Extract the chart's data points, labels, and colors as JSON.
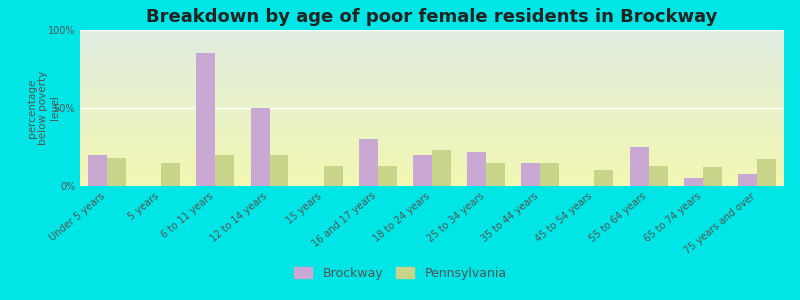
{
  "title": "Breakdown by age of poor female residents in Brockway",
  "ylabel": "percentage\nbelow poverty\nlevel",
  "categories": [
    "Under 5 years",
    "5 years",
    "6 to 11 years",
    "12 to 14 years",
    "15 years",
    "16 and 17 years",
    "18 to 24 years",
    "25 to 34 years",
    "35 to 44 years",
    "45 to 54 years",
    "55 to 64 years",
    "65 to 74 years",
    "75 years and over"
  ],
  "brockway": [
    20,
    0,
    85,
    50,
    0,
    30,
    20,
    22,
    15,
    0,
    25,
    5,
    8
  ],
  "pennsylvania": [
    18,
    15,
    20,
    20,
    13,
    13,
    23,
    15,
    15,
    10,
    13,
    12,
    17
  ],
  "brockway_color": "#c9a8d4",
  "pennsylvania_color": "#c8d48a",
  "outer_bg": "#00e5e5",
  "ylim": [
    0,
    100
  ],
  "yticks": [
    0,
    50,
    100
  ],
  "ytick_labels": [
    "0%",
    "50%",
    "100%"
  ],
  "title_fontsize": 13,
  "axis_label_fontsize": 7.5,
  "tick_label_fontsize": 7,
  "bar_width": 0.35,
  "legend_brockway": "Brockway",
  "legend_pennsylvania": "Pennsylvania"
}
